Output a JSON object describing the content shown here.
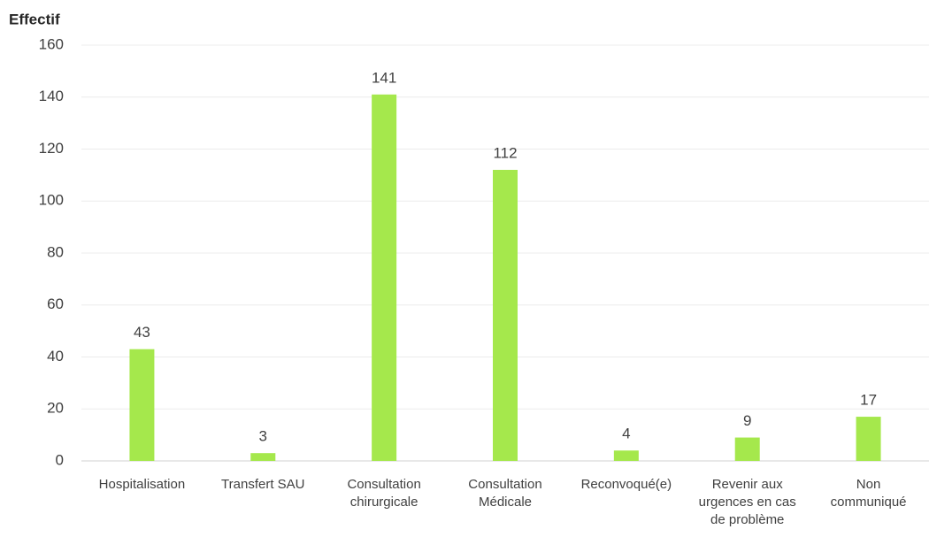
{
  "chart_data": {
    "type": "bar",
    "y_axis_label": "Effectif",
    "categories": [
      "Hospitalisation",
      "Transfert SAU",
      "Consultation\nchirurgicale",
      "Consultation\nMédicale",
      "Reconvoqué(e)",
      "Revenir aux\nurgences en cas\nde problème",
      "Non\ncommuniqué"
    ],
    "values": [
      43,
      3,
      141,
      112,
      4,
      9,
      17
    ],
    "color": "#a5e84c",
    "ylim": [
      0,
      160
    ],
    "yticks": [
      0,
      20,
      40,
      60,
      80,
      100,
      120,
      140,
      160
    ],
    "grid": true
  }
}
